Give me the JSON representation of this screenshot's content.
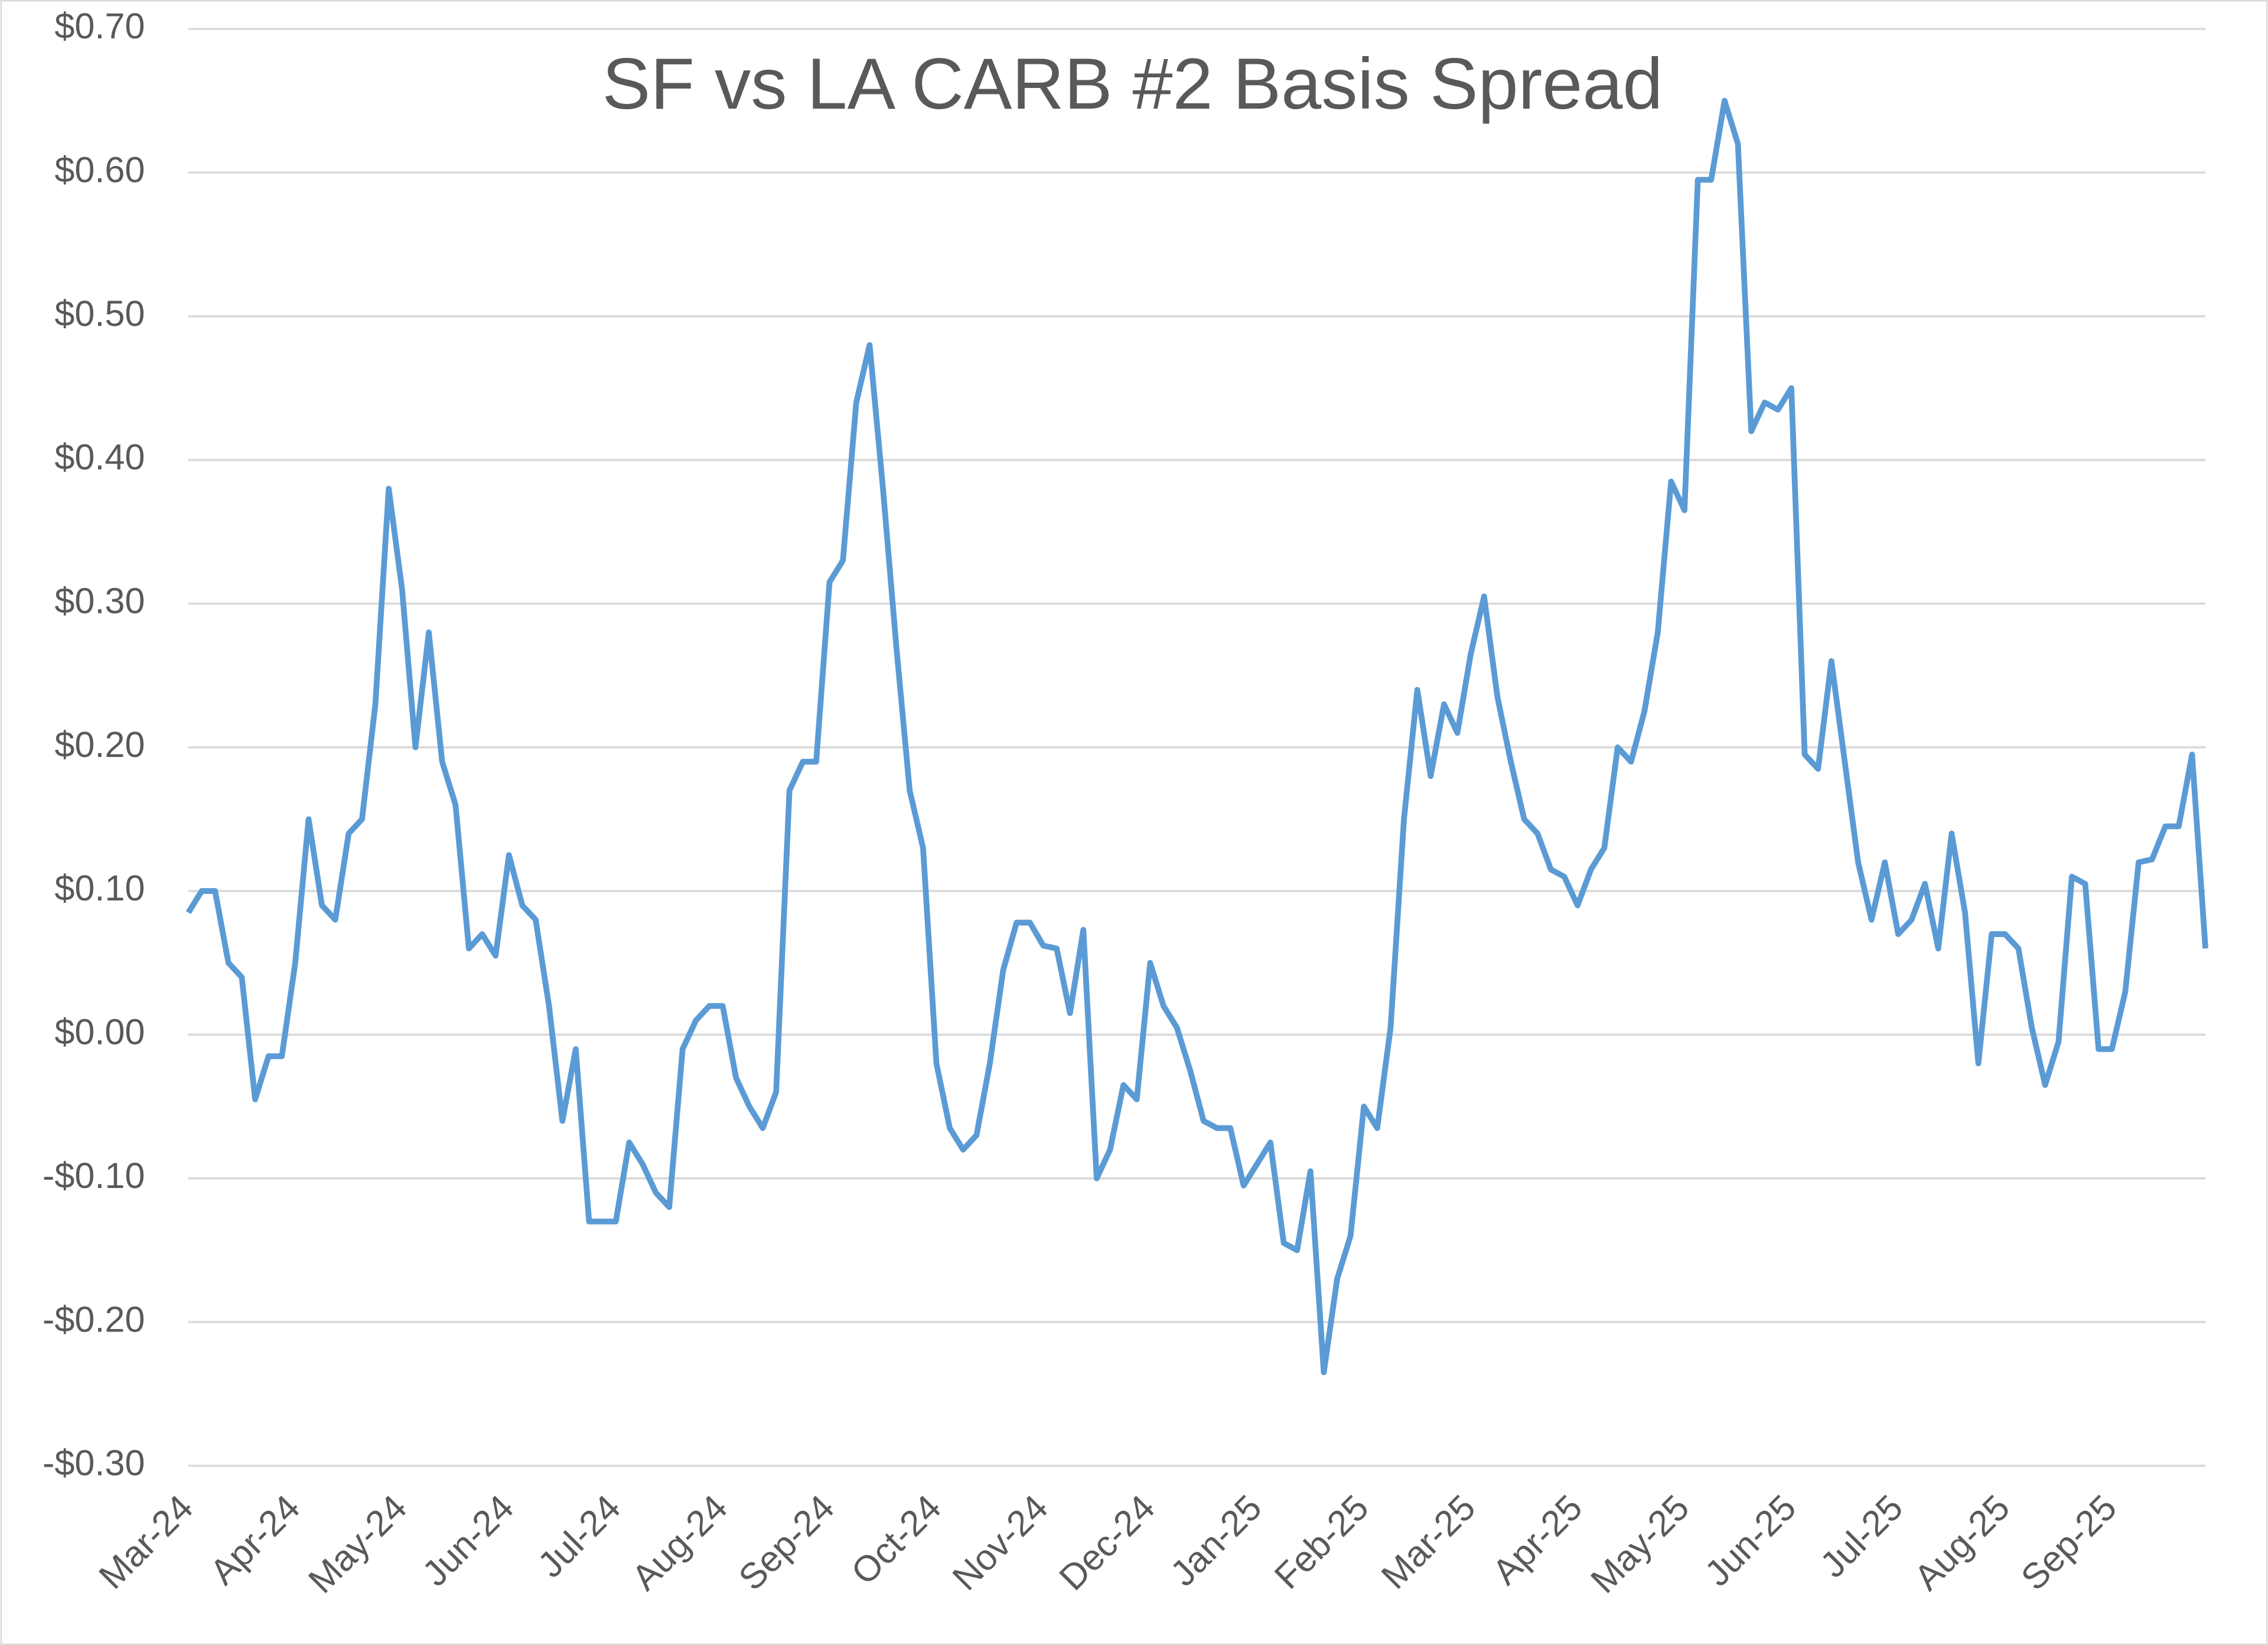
{
  "chart_data": {
    "type": "line",
    "title": "SF vs LA  CARB #2 Basis Spread",
    "categories": [
      "Mar-24",
      null,
      null,
      null,
      null,
      null,
      null,
      null,
      "Apr-24",
      null,
      null,
      null,
      null,
      null,
      null,
      null,
      "May-24",
      null,
      null,
      null,
      null,
      null,
      null,
      null,
      "Jun-24",
      null,
      null,
      null,
      null,
      null,
      null,
      null,
      "Jul-24",
      null,
      null,
      null,
      null,
      null,
      null,
      null,
      "Aug-24",
      null,
      null,
      null,
      null,
      null,
      null,
      null,
      "Sep-24",
      null,
      null,
      null,
      null,
      null,
      null,
      null,
      "Oct-24",
      null,
      null,
      null,
      null,
      null,
      null,
      null,
      "Nov-24",
      null,
      null,
      null,
      null,
      null,
      null,
      null,
      "Dec-24",
      null,
      null,
      null,
      null,
      null,
      null,
      null,
      "Jan-25",
      null,
      null,
      null,
      null,
      null,
      null,
      null,
      "Feb-25",
      null,
      null,
      null,
      null,
      null,
      null,
      null,
      "Mar-25",
      null,
      null,
      null,
      null,
      null,
      null,
      null,
      "Apr-25",
      null,
      null,
      null,
      null,
      null,
      null,
      null,
      "May-25",
      null,
      null,
      null,
      null,
      null,
      null,
      null,
      "Jun-25",
      null,
      null,
      null,
      null,
      null,
      null,
      null,
      "Jul-25",
      null,
      null,
      null,
      null,
      null,
      null,
      null,
      "Aug-25",
      null,
      null,
      null,
      null,
      null,
      null,
      null,
      "Sep-25",
      null,
      null,
      null,
      null,
      null,
      null,
      null
    ],
    "series": [
      {
        "name": "SF vs LA CARB #2 Basis Spread",
        "color": "#5b9bd5",
        "values": [
          0.085,
          0.1,
          0.1,
          0.05,
          0.04,
          -0.045,
          -0.015,
          -0.015,
          0.05,
          0.15,
          0.09,
          0.08,
          0.14,
          0.15,
          0.23,
          0.38,
          0.31,
          0.2,
          0.28,
          0.19,
          0.16,
          0.06,
          0.07,
          0.055,
          0.125,
          0.09,
          0.08,
          0.02,
          -0.06,
          -0.01,
          -0.13,
          -0.13,
          -0.13,
          -0.075,
          -0.09,
          -0.11,
          -0.12,
          -0.01,
          0.01,
          0.02,
          0.02,
          -0.03,
          -0.05,
          -0.065,
          -0.04,
          0.17,
          0.19,
          0.19,
          0.315,
          0.33,
          0.44,
          0.48,
          0.38,
          0.27,
          0.17,
          0.13,
          -0.02,
          -0.065,
          -0.08,
          -0.07,
          -0.02,
          0.045,
          0.078,
          0.078,
          0.062,
          0.06,
          0.015,
          0.073,
          -0.1,
          -0.08,
          -0.035,
          -0.045,
          0.05,
          0.02,
          0.005,
          -0.025,
          -0.06,
          -0.065,
          -0.065,
          -0.105,
          -0.09,
          -0.075,
          -0.145,
          -0.15,
          -0.095,
          -0.235,
          -0.17,
          -0.14,
          -0.05,
          -0.065,
          0.005,
          0.15,
          0.24,
          0.18,
          0.23,
          0.21,
          0.265,
          0.305,
          0.235,
          0.19,
          0.15,
          0.14,
          0.115,
          0.11,
          0.09,
          0.115,
          0.13,
          0.2,
          0.19,
          0.225,
          0.28,
          0.385,
          0.365,
          0.595,
          0.595,
          0.65,
          0.62,
          0.42,
          0.44,
          0.435,
          0.45,
          0.195,
          0.185,
          0.26,
          0.19,
          0.12,
          0.08,
          0.12,
          0.07,
          0.08,
          0.105,
          0.06,
          0.14,
          0.085,
          -0.02,
          0.07,
          0.07,
          0.06,
          0.005,
          -0.035,
          -0.005,
          0.11,
          0.105,
          -0.01,
          -0.01,
          0.03,
          0.12,
          0.122,
          0.145,
          0.145,
          0.195,
          0.06
        ]
      }
    ],
    "ylim": [
      -0.3,
      0.7
    ],
    "yticks": [
      {
        "value": -0.3,
        "label": "-$0.30"
      },
      {
        "value": -0.2,
        "label": "-$0.20"
      },
      {
        "value": -0.1,
        "label": "-$0.10"
      },
      {
        "value": 0,
        "label": "$0.00"
      },
      {
        "value": 0.1,
        "label": "$0.10"
      },
      {
        "value": 0.2,
        "label": "$0.20"
      },
      {
        "value": 0.3,
        "label": "$0.30"
      },
      {
        "value": 0.4,
        "label": "$0.40"
      },
      {
        "value": 0.5,
        "label": "$0.50"
      },
      {
        "value": 0.6,
        "label": "$0.60"
      },
      {
        "value": 0.7,
        "label": "$0.70"
      }
    ],
    "grid": true
  }
}
